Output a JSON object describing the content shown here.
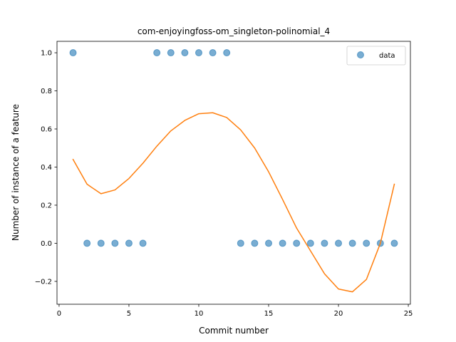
{
  "chart_data": {
    "type": "scatter",
    "title": "com-enjoyingfoss-om_singleton-polinomial_4",
    "xlabel": "Commit number",
    "ylabel": "Number of instance of a feature",
    "xlim": [
      -0.15,
      25.15
    ],
    "ylim": [
      -0.32,
      1.06
    ],
    "xticks": [
      0,
      5,
      10,
      15,
      20,
      25
    ],
    "xtick_labels": [
      "0",
      "5",
      "10",
      "15",
      "20",
      "25"
    ],
    "yticks": [
      -0.2,
      0.0,
      0.2,
      0.4,
      0.6,
      0.8,
      1.0
    ],
    "ytick_labels": [
      "−0.2",
      "0.0",
      "0.2",
      "0.4",
      "0.6",
      "0.8",
      "1.0"
    ],
    "grid": false,
    "legend_position": "top-right",
    "series": [
      {
        "name": "data",
        "kind": "scatter",
        "color": "#1f77b4",
        "x": [
          1,
          2,
          3,
          4,
          5,
          6,
          7,
          8,
          9,
          10,
          11,
          12,
          13,
          14,
          15,
          16,
          17,
          18,
          19,
          20,
          21,
          22,
          23,
          24
        ],
        "y": [
          1,
          0,
          0,
          0,
          0,
          0,
          1,
          1,
          1,
          1,
          1,
          1,
          0,
          0,
          0,
          0,
          0,
          0,
          0,
          0,
          0,
          0,
          0,
          0
        ]
      },
      {
        "kind": "line",
        "color": "#ff7f0e",
        "x": [
          1,
          2,
          3,
          4,
          5,
          6,
          7,
          8,
          9,
          10,
          11,
          12,
          13,
          14,
          15,
          16,
          17,
          18,
          19,
          20,
          21,
          22,
          23,
          24
        ],
        "y": [
          0.44,
          0.31,
          0.26,
          0.28,
          0.34,
          0.42,
          0.51,
          0.59,
          0.645,
          0.68,
          0.685,
          0.66,
          0.595,
          0.5,
          0.375,
          0.23,
          0.08,
          -0.04,
          -0.16,
          -0.24,
          -0.255,
          -0.19,
          0.0,
          0.31
        ]
      }
    ]
  }
}
